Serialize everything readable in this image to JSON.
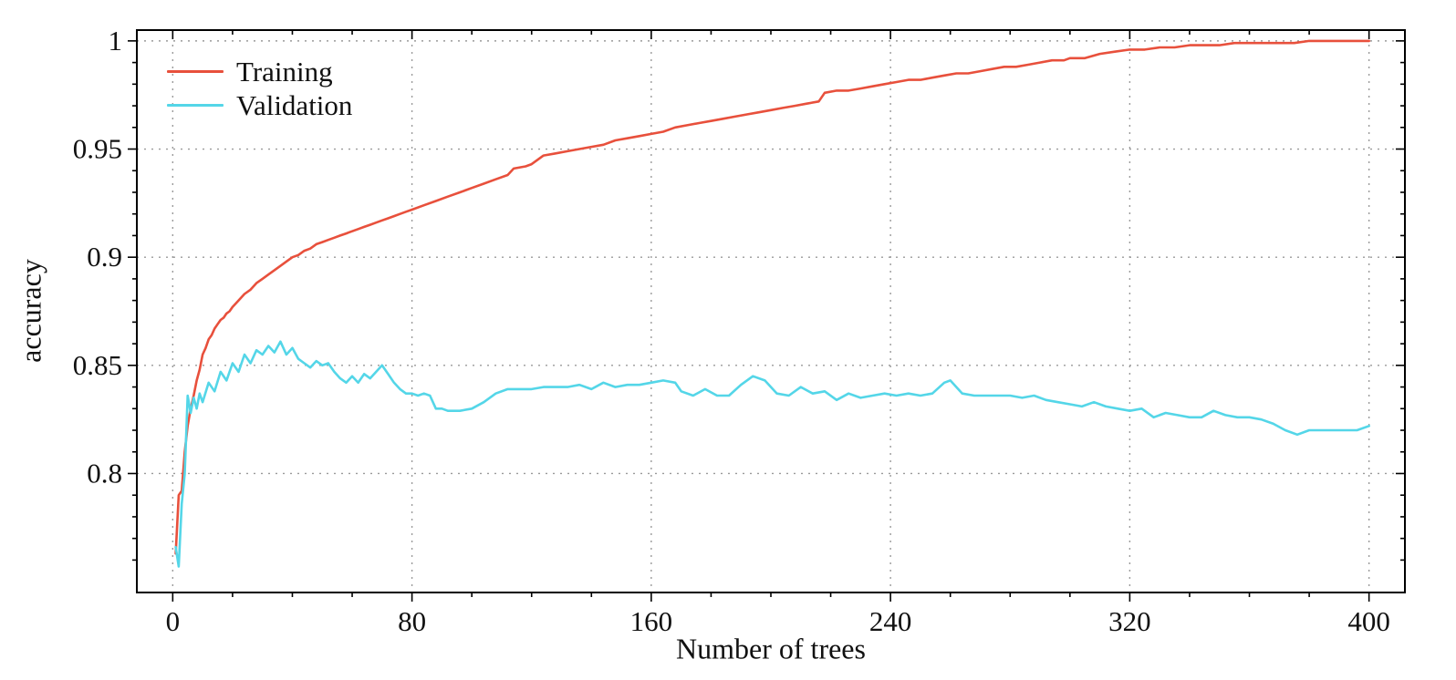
{
  "chart_data": {
    "type": "line",
    "title": "",
    "xlabel": "Number of trees",
    "ylabel": "accuracy",
    "xlim": [
      -12,
      412
    ],
    "ylim": [
      0.745,
      1.005
    ],
    "grid": "dotted",
    "legend_position": "top-left-inside",
    "grid_color": "#9a9a9a",
    "frame_color": "#000000",
    "xticks": {
      "values": [
        0,
        80,
        160,
        240,
        320,
        400
      ],
      "labels": [
        "0",
        "80",
        "160",
        "240",
        "320",
        "400"
      ],
      "minor_step": 20
    },
    "yticks": {
      "values": [
        0.8,
        0.85,
        0.9,
        0.95,
        1.0
      ],
      "labels": [
        "0.8",
        "0.85",
        "0.9",
        "0.95",
        "1"
      ],
      "minor_step": 0.01
    },
    "series": [
      {
        "name": "Training",
        "color": "#e8503c",
        "points": [
          [
            1,
            0.763
          ],
          [
            2,
            0.79
          ],
          [
            3,
            0.792
          ],
          [
            4,
            0.81
          ],
          [
            5,
            0.822
          ],
          [
            6,
            0.83
          ],
          [
            7,
            0.836
          ],
          [
            8,
            0.843
          ],
          [
            9,
            0.848
          ],
          [
            10,
            0.855
          ],
          [
            11,
            0.858
          ],
          [
            12,
            0.862
          ],
          [
            13,
            0.864
          ],
          [
            14,
            0.867
          ],
          [
            15,
            0.869
          ],
          [
            16,
            0.871
          ],
          [
            17,
            0.872
          ],
          [
            18,
            0.874
          ],
          [
            19,
            0.875
          ],
          [
            20,
            0.877
          ],
          [
            22,
            0.88
          ],
          [
            24,
            0.883
          ],
          [
            26,
            0.885
          ],
          [
            28,
            0.888
          ],
          [
            30,
            0.89
          ],
          [
            32,
            0.892
          ],
          [
            34,
            0.894
          ],
          [
            36,
            0.896
          ],
          [
            38,
            0.898
          ],
          [
            40,
            0.9
          ],
          [
            42,
            0.901
          ],
          [
            44,
            0.903
          ],
          [
            46,
            0.904
          ],
          [
            48,
            0.906
          ],
          [
            50,
            0.907
          ],
          [
            52,
            0.908
          ],
          [
            54,
            0.909
          ],
          [
            56,
            0.91
          ],
          [
            58,
            0.911
          ],
          [
            60,
            0.912
          ],
          [
            62,
            0.913
          ],
          [
            64,
            0.914
          ],
          [
            66,
            0.915
          ],
          [
            68,
            0.916
          ],
          [
            70,
            0.917
          ],
          [
            72,
            0.918
          ],
          [
            74,
            0.919
          ],
          [
            76,
            0.92
          ],
          [
            78,
            0.921
          ],
          [
            80,
            0.922
          ],
          [
            84,
            0.924
          ],
          [
            88,
            0.926
          ],
          [
            92,
            0.928
          ],
          [
            96,
            0.93
          ],
          [
            100,
            0.932
          ],
          [
            104,
            0.934
          ],
          [
            108,
            0.936
          ],
          [
            112,
            0.938
          ],
          [
            114,
            0.941
          ],
          [
            118,
            0.942
          ],
          [
            120,
            0.943
          ],
          [
            124,
            0.947
          ],
          [
            128,
            0.948
          ],
          [
            132,
            0.949
          ],
          [
            136,
            0.95
          ],
          [
            140,
            0.951
          ],
          [
            144,
            0.952
          ],
          [
            148,
            0.954
          ],
          [
            152,
            0.955
          ],
          [
            156,
            0.956
          ],
          [
            160,
            0.957
          ],
          [
            164,
            0.958
          ],
          [
            168,
            0.96
          ],
          [
            172,
            0.961
          ],
          [
            176,
            0.962
          ],
          [
            180,
            0.963
          ],
          [
            184,
            0.964
          ],
          [
            188,
            0.965
          ],
          [
            192,
            0.966
          ],
          [
            196,
            0.967
          ],
          [
            200,
            0.968
          ],
          [
            204,
            0.969
          ],
          [
            208,
            0.97
          ],
          [
            212,
            0.971
          ],
          [
            216,
            0.972
          ],
          [
            218,
            0.976
          ],
          [
            222,
            0.977
          ],
          [
            226,
            0.977
          ],
          [
            230,
            0.978
          ],
          [
            234,
            0.979
          ],
          [
            238,
            0.98
          ],
          [
            242,
            0.981
          ],
          [
            246,
            0.982
          ],
          [
            250,
            0.982
          ],
          [
            254,
            0.983
          ],
          [
            258,
            0.984
          ],
          [
            262,
            0.985
          ],
          [
            266,
            0.985
          ],
          [
            270,
            0.986
          ],
          [
            274,
            0.987
          ],
          [
            278,
            0.988
          ],
          [
            282,
            0.988
          ],
          [
            286,
            0.989
          ],
          [
            290,
            0.99
          ],
          [
            294,
            0.991
          ],
          [
            298,
            0.991
          ],
          [
            300,
            0.992
          ],
          [
            305,
            0.992
          ],
          [
            310,
            0.994
          ],
          [
            315,
            0.995
          ],
          [
            320,
            0.996
          ],
          [
            325,
            0.996
          ],
          [
            330,
            0.997
          ],
          [
            335,
            0.997
          ],
          [
            340,
            0.998
          ],
          [
            345,
            0.998
          ],
          [
            350,
            0.998
          ],
          [
            355,
            0.999
          ],
          [
            360,
            0.999
          ],
          [
            365,
            0.999
          ],
          [
            370,
            0.999
          ],
          [
            375,
            0.999
          ],
          [
            380,
            1.0
          ],
          [
            385,
            1.0
          ],
          [
            390,
            1.0
          ],
          [
            395,
            1.0
          ],
          [
            400,
            1.0
          ]
        ]
      },
      {
        "name": "Validation",
        "color": "#54d6e8",
        "points": [
          [
            1,
            0.766
          ],
          [
            2,
            0.757
          ],
          [
            3,
            0.786
          ],
          [
            4,
            0.8
          ],
          [
            5,
            0.836
          ],
          [
            6,
            0.828
          ],
          [
            7,
            0.835
          ],
          [
            8,
            0.83
          ],
          [
            9,
            0.837
          ],
          [
            10,
            0.833
          ],
          [
            12,
            0.842
          ],
          [
            14,
            0.838
          ],
          [
            16,
            0.847
          ],
          [
            18,
            0.843
          ],
          [
            20,
            0.851
          ],
          [
            22,
            0.847
          ],
          [
            24,
            0.855
          ],
          [
            26,
            0.851
          ],
          [
            28,
            0.857
          ],
          [
            30,
            0.855
          ],
          [
            32,
            0.859
          ],
          [
            34,
            0.856
          ],
          [
            36,
            0.861
          ],
          [
            38,
            0.855
          ],
          [
            40,
            0.858
          ],
          [
            42,
            0.853
          ],
          [
            44,
            0.851
          ],
          [
            46,
            0.849
          ],
          [
            48,
            0.852
          ],
          [
            50,
            0.85
          ],
          [
            52,
            0.851
          ],
          [
            54,
            0.847
          ],
          [
            56,
            0.844
          ],
          [
            58,
            0.842
          ],
          [
            60,
            0.845
          ],
          [
            62,
            0.842
          ],
          [
            64,
            0.846
          ],
          [
            66,
            0.844
          ],
          [
            68,
            0.847
          ],
          [
            70,
            0.85
          ],
          [
            72,
            0.846
          ],
          [
            74,
            0.842
          ],
          [
            76,
            0.839
          ],
          [
            78,
            0.837
          ],
          [
            80,
            0.837
          ],
          [
            82,
            0.836
          ],
          [
            84,
            0.837
          ],
          [
            86,
            0.836
          ],
          [
            88,
            0.83
          ],
          [
            90,
            0.83
          ],
          [
            92,
            0.829
          ],
          [
            96,
            0.829
          ],
          [
            100,
            0.83
          ],
          [
            104,
            0.833
          ],
          [
            108,
            0.837
          ],
          [
            112,
            0.839
          ],
          [
            116,
            0.839
          ],
          [
            120,
            0.839
          ],
          [
            124,
            0.84
          ],
          [
            128,
            0.84
          ],
          [
            132,
            0.84
          ],
          [
            136,
            0.841
          ],
          [
            140,
            0.839
          ],
          [
            144,
            0.842
          ],
          [
            148,
            0.84
          ],
          [
            152,
            0.841
          ],
          [
            156,
            0.841
          ],
          [
            160,
            0.842
          ],
          [
            164,
            0.843
          ],
          [
            168,
            0.842
          ],
          [
            170,
            0.838
          ],
          [
            174,
            0.836
          ],
          [
            178,
            0.839
          ],
          [
            182,
            0.836
          ],
          [
            186,
            0.836
          ],
          [
            190,
            0.841
          ],
          [
            194,
            0.845
          ],
          [
            198,
            0.843
          ],
          [
            202,
            0.837
          ],
          [
            206,
            0.836
          ],
          [
            210,
            0.84
          ],
          [
            214,
            0.837
          ],
          [
            218,
            0.838
          ],
          [
            222,
            0.834
          ],
          [
            226,
            0.837
          ],
          [
            230,
            0.835
          ],
          [
            234,
            0.836
          ],
          [
            238,
            0.837
          ],
          [
            242,
            0.836
          ],
          [
            246,
            0.837
          ],
          [
            250,
            0.836
          ],
          [
            254,
            0.837
          ],
          [
            258,
            0.842
          ],
          [
            260,
            0.843
          ],
          [
            264,
            0.837
          ],
          [
            268,
            0.836
          ],
          [
            272,
            0.836
          ],
          [
            276,
            0.836
          ],
          [
            280,
            0.836
          ],
          [
            284,
            0.835
          ],
          [
            288,
            0.836
          ],
          [
            292,
            0.834
          ],
          [
            296,
            0.833
          ],
          [
            300,
            0.832
          ],
          [
            304,
            0.831
          ],
          [
            308,
            0.833
          ],
          [
            312,
            0.831
          ],
          [
            316,
            0.83
          ],
          [
            320,
            0.829
          ],
          [
            324,
            0.83
          ],
          [
            328,
            0.826
          ],
          [
            332,
            0.828
          ],
          [
            336,
            0.827
          ],
          [
            340,
            0.826
          ],
          [
            344,
            0.826
          ],
          [
            348,
            0.829
          ],
          [
            352,
            0.827
          ],
          [
            356,
            0.826
          ],
          [
            360,
            0.826
          ],
          [
            364,
            0.825
          ],
          [
            368,
            0.823
          ],
          [
            372,
            0.82
          ],
          [
            376,
            0.818
          ],
          [
            380,
            0.82
          ],
          [
            384,
            0.82
          ],
          [
            388,
            0.82
          ],
          [
            392,
            0.82
          ],
          [
            396,
            0.82
          ],
          [
            400,
            0.822
          ]
        ]
      }
    ]
  }
}
